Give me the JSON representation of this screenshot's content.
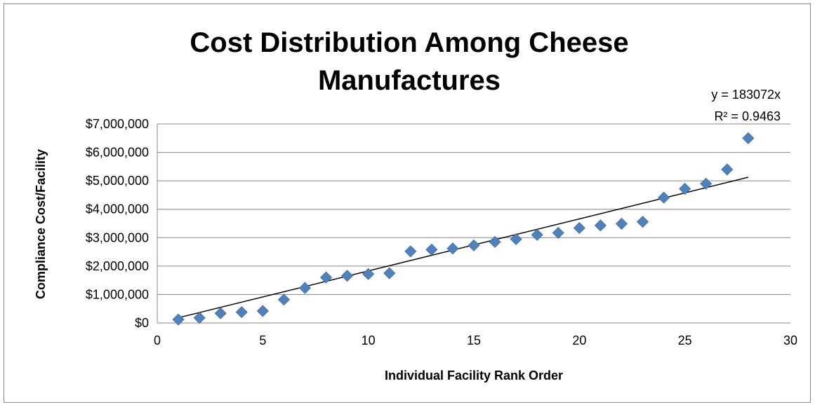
{
  "chart_data": {
    "type": "scatter",
    "title_line1": "Cost Distribution Among Cheese",
    "title_line2": "Manufactures",
    "xlabel": "Individual Facility Rank Order",
    "ylabel": "Compliance Cost/Facility",
    "xlim": [
      0,
      30
    ],
    "ylim": [
      0,
      7000000
    ],
    "x_ticks": [
      "0",
      "5",
      "10",
      "15",
      "20",
      "25",
      "30"
    ],
    "y_ticks": [
      "$0",
      "$1,000,000",
      "$2,000,000",
      "$3,000,000",
      "$4,000,000",
      "$5,000,000",
      "$6,000,000",
      "$7,000,000"
    ],
    "grid": "horizontal",
    "marker_color": "#4f81bd",
    "trendline": {
      "type": "linear",
      "slope": 183072,
      "intercept": 0,
      "equation": "y = 183072x",
      "r_squared": "R² = 0.9463"
    },
    "series": [
      {
        "x": [
          1,
          2,
          3,
          4,
          5,
          6,
          7,
          8,
          9,
          10,
          11,
          12,
          13,
          14,
          15,
          16,
          17,
          18,
          19,
          20,
          21,
          22,
          23,
          24,
          25,
          26,
          27,
          28
        ],
        "y": [
          120000,
          180000,
          340000,
          380000,
          420000,
          820000,
          1230000,
          1600000,
          1660000,
          1720000,
          1750000,
          2520000,
          2580000,
          2620000,
          2730000,
          2850000,
          2950000,
          3100000,
          3170000,
          3340000,
          3430000,
          3490000,
          3560000,
          4410000,
          4720000,
          4900000,
          5400000,
          6500000
        ]
      }
    ]
  }
}
